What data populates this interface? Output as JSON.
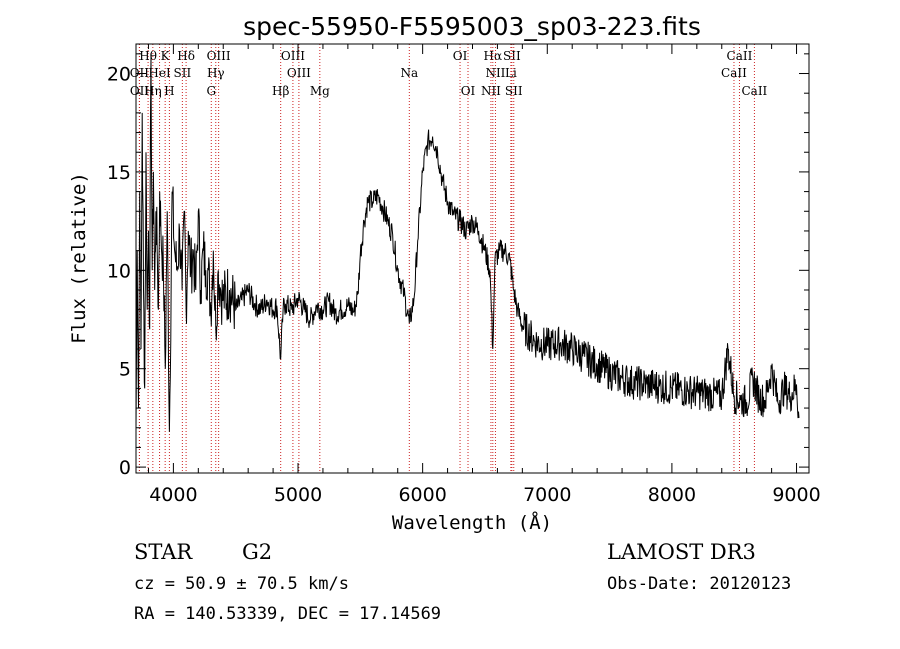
{
  "chart_data": {
    "type": "line",
    "title": "spec-55950-F5595003_sp03-223.fits",
    "xlabel": "Wavelength (Å)",
    "ylabel": "Flux (relative)",
    "xlim": [
      3700,
      9100
    ],
    "ylim": [
      -0.3,
      21.5
    ],
    "x_ticks": [
      4000,
      5000,
      6000,
      7000,
      8000,
      9000
    ],
    "y_ticks": [
      0,
      5,
      10,
      15,
      20
    ],
    "grid": false,
    "line_color": "#000000",
    "marker_color": "#cc2222",
    "series": [
      {
        "name": "flux",
        "x": [
          3700,
          3710,
          3720,
          3730,
          3740,
          3750,
          3760,
          3770,
          3780,
          3790,
          3800,
          3810,
          3820,
          3830,
          3840,
          3850,
          3860,
          3870,
          3880,
          3890,
          3900,
          3920,
          3935,
          3950,
          3968,
          3990,
          4010,
          4030,
          4050,
          4070,
          4090,
          4102,
          4120,
          4140,
          4160,
          4180,
          4200,
          4220,
          4240,
          4260,
          4280,
          4300,
          4320,
          4340,
          4360,
          4380,
          4400,
          4450,
          4500,
          4550,
          4600,
          4650,
          4700,
          4750,
          4800,
          4830,
          4861,
          4880,
          4900,
          4950,
          5000,
          5050,
          5100,
          5150,
          5200,
          5250,
          5300,
          5350,
          5400,
          5450,
          5480,
          5500,
          5530,
          5560,
          5600,
          5640,
          5680,
          5720,
          5760,
          5800,
          5850,
          5893,
          5930,
          5960,
          6000,
          6040,
          6080,
          6120,
          6160,
          6200,
          6250,
          6300,
          6350,
          6400,
          6450,
          6500,
          6540,
          6563,
          6580,
          6620,
          6660,
          6700,
          6730,
          6760,
          6800,
          6850,
          6900,
          7000,
          7100,
          7200,
          7300,
          7400,
          7500,
          7600,
          7700,
          7800,
          7900,
          8000,
          8100,
          8200,
          8300,
          8400,
          8450,
          8500,
          8550,
          8600,
          8650,
          8700,
          8750,
          8800,
          8850,
          8900,
          8950,
          9000,
          9020
        ],
        "values": [
          2,
          11,
          3,
          14,
          6,
          18,
          9,
          4,
          16,
          8,
          12,
          7,
          21,
          10,
          15,
          9,
          13,
          11,
          8,
          14,
          12,
          10,
          5,
          13,
          1.8,
          14,
          11,
          10,
          12,
          9,
          13,
          8,
          12,
          10,
          11,
          9,
          13,
          9,
          11,
          10,
          10,
          8,
          11,
          7,
          10,
          9,
          8.5,
          9,
          8,
          8.5,
          9,
          8.3,
          8,
          8.5,
          8,
          8.2,
          5.5,
          8,
          8.3,
          8,
          8.6,
          8,
          7.5,
          8.2,
          8,
          8.4,
          7.8,
          8,
          8.2,
          7.9,
          8.8,
          10.8,
          12.5,
          13.5,
          13.5,
          13.8,
          13.2,
          12.5,
          11.8,
          10,
          8.8,
          7.3,
          8.5,
          11.5,
          15,
          16.5,
          16.8,
          16,
          14.5,
          13.5,
          12.8,
          12.5,
          12,
          12.5,
          12,
          11,
          10,
          6,
          10.5,
          11,
          11,
          10.5,
          9,
          8,
          7.2,
          6.8,
          6.4,
          6.2,
          6.3,
          6,
          5.6,
          5.2,
          4.8,
          4.5,
          4.3,
          4.2,
          4.1,
          4,
          3.9,
          3.8,
          3.7,
          3.6,
          6,
          3.6,
          3.4,
          3.3,
          4.5,
          3.5,
          3.4,
          5,
          3.3,
          4,
          3.6,
          4.2,
          2.5
        ]
      }
    ],
    "line_markers": [
      {
        "name": "Hθ",
        "wl": 3797,
        "row": 0
      },
      {
        "name": "K",
        "wl": 3934,
        "row": 0
      },
      {
        "name": "Hδ",
        "wl": 4102,
        "row": 0
      },
      {
        "name": "OIII",
        "wl": 4363,
        "row": 0
      },
      {
        "name": "OIII",
        "wl": 4959,
        "row": 0
      },
      {
        "name": "OI",
        "wl": 6300,
        "row": 0
      },
      {
        "name": "Hα",
        "wl": 6563,
        "row": 0
      },
      {
        "name": "SII",
        "wl": 6716,
        "row": 0
      },
      {
        "name": "CaII",
        "wl": 8542,
        "row": 0
      },
      {
        "name": "OII",
        "wl": 3727,
        "row": 1
      },
      {
        "name": "HeI",
        "wl": 3889,
        "row": 1
      },
      {
        "name": "SII",
        "wl": 4072,
        "row": 1
      },
      {
        "name": "Hγ",
        "wl": 4340,
        "row": 1
      },
      {
        "name": "OIII",
        "wl": 5007,
        "row": 1
      },
      {
        "name": "Na",
        "wl": 5893,
        "row": 1
      },
      {
        "name": "NII",
        "wl": 6584,
        "row": 1
      },
      {
        "name": "Li",
        "wl": 6708,
        "row": 1
      },
      {
        "name": "CaII",
        "wl": 8498,
        "row": 1
      },
      {
        "name": "OII",
        "wl": 3728,
        "row": 2
      },
      {
        "name": "Hη",
        "wl": 3835,
        "row": 2
      },
      {
        "name": "H",
        "wl": 3968,
        "row": 2
      },
      {
        "name": "G",
        "wl": 4304,
        "row": 2
      },
      {
        "name": "Hβ",
        "wl": 4861,
        "row": 2
      },
      {
        "name": "Mg",
        "wl": 5175,
        "row": 2
      },
      {
        "name": "OI",
        "wl": 6364,
        "row": 2
      },
      {
        "name": "NII",
        "wl": 6548,
        "row": 2
      },
      {
        "name": "SII",
        "wl": 6731,
        "row": 2
      },
      {
        "name": "CaII",
        "wl": 8662,
        "row": 2
      }
    ]
  },
  "info": {
    "class": "STAR",
    "subclass": "G2",
    "cz": "cz = 50.9 ± 70.5 km/s",
    "radec": "RA = 140.53339, DEC =  17.14569",
    "survey": "LAMOST DR3",
    "obsdate": "Obs-Date: 20120123"
  }
}
